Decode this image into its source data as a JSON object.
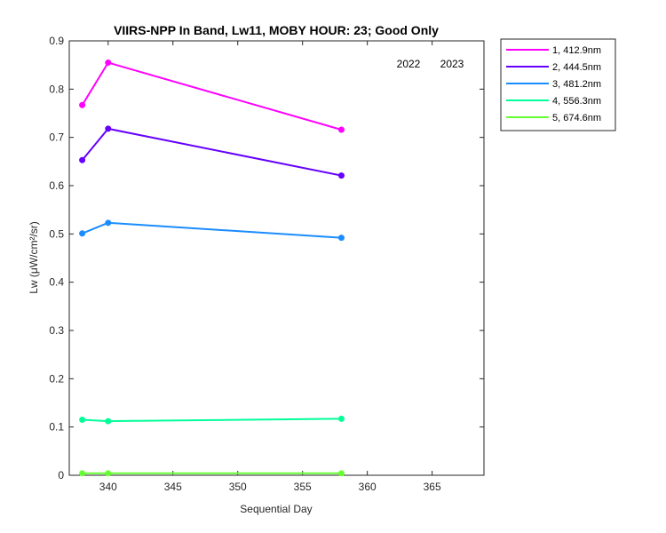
{
  "chart_data": {
    "type": "line",
    "title": "VIIRS-NPP In Band,  Lw11, MOBY HOUR: 23;  Good Only",
    "xlabel": "Sequential Day",
    "ylabel": "Lw (μW/cm²/sr)",
    "xlim": [
      337,
      369
    ],
    "ylim": [
      0,
      0.9
    ],
    "xticks": [
      340,
      345,
      350,
      355,
      360,
      365
    ],
    "yticks": [
      0,
      0.1,
      0.2,
      0.3,
      0.4,
      0.5,
      0.6,
      0.7,
      0.8,
      0.9
    ],
    "grid": false,
    "legend_position": "outside-top-right",
    "annotations": [
      "2022",
      "2023"
    ],
    "series": [
      {
        "name": "1, 412.9nm",
        "color": "#ff00ff",
        "x": [
          338,
          340,
          358
        ],
        "y": [
          0.767,
          0.855,
          0.716
        ]
      },
      {
        "name": "2, 444.5nm",
        "color": "#6600ff",
        "x": [
          338,
          340,
          358
        ],
        "y": [
          0.653,
          0.718,
          0.621
        ]
      },
      {
        "name": "3, 481.2nm",
        "color": "#1a8cff",
        "x": [
          338,
          340,
          358
        ],
        "y": [
          0.501,
          0.523,
          0.492
        ]
      },
      {
        "name": "4, 556.3nm",
        "color": "#00ff99",
        "x": [
          338,
          340,
          358
        ],
        "y": [
          0.115,
          0.112,
          0.117
        ]
      },
      {
        "name": "5, 674.6nm",
        "color": "#66ff33",
        "x": [
          338,
          340,
          358
        ],
        "y": [
          0.004,
          0.004,
          0.004
        ]
      }
    ]
  }
}
